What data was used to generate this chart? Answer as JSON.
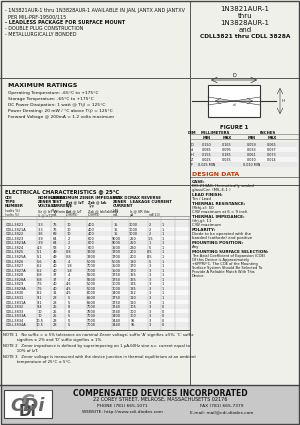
{
  "title_right_line1": "1N3821AUR-1",
  "title_right_line2": "thru",
  "title_right_line3": "1N3828AUR-1",
  "title_right_line4": "and",
  "title_right_line5": "CDLL3821 thru CDLL 3828A",
  "bullet1": "- 1N3821AUR-1 thru 1N3828AUR-1 AVAILABLE IN JAN, JANTX AND JANTXV",
  "bullet1b": "  PER MIL-PRF-19500/115",
  "bullet2": "- LEADLESS PACKAGE FOR SURFACE MOUNT",
  "bullet3": "- DOUBLE PLUG CONSTRUCTION",
  "bullet4": "- METALLURGICALLY BONDED",
  "max_ratings_title": "MAXIMUM RATINGS",
  "max_ratings": [
    "Operating Temperature: -65°C to +175°C",
    "Storage Temperature: -65°C to +175°C",
    "DC Power Dissipation: 1 watt @ T(j) = 125°C",
    "Power Derating: 20 mW / °C above T(j) = 125°C",
    "Forward Voltage @ 200mA = 1.2 volts maximum"
  ],
  "elec_char_title": "ELECTRICAL CHARACTERISTICS @ 25°C",
  "table_rows": [
    [
      "CDLL3821",
      "3.3",
      "76",
      "10",
      "400",
      "15",
      "1000",
      "2",
      "1"
    ],
    [
      "CDLL3821A",
      "3.3",
      "76",
      "10",
      "400",
      "15",
      "1000",
      "2",
      "1"
    ],
    [
      "CDLL3822",
      "3.6",
      "69",
      "10",
      "400",
      "15",
      "1000",
      "2",
      "1"
    ],
    [
      "CDLL3823",
      "3.9",
      "64",
      "2",
      "600",
      "9000",
      "250",
      "1.5",
      "1"
    ],
    [
      "CDLL3823A",
      "3.9",
      "64",
      "2",
      "600",
      "9000",
      "250",
      "1",
      "1"
    ],
    [
      "CDLL3824",
      "4.3",
      "58",
      "2",
      "600",
      "1500",
      "230",
      "5",
      "1"
    ],
    [
      "CDLL3825",
      "5.1",
      "49",
      "0.8",
      "1900",
      "1700",
      "200",
      "0.5",
      "1"
    ],
    [
      "CDLL3825A",
      "5.1",
      "49",
      "0.8",
      "1900",
      "1700",
      "200",
      "0.5",
      "1"
    ],
    [
      "CDLL3826",
      "5.6",
      "45",
      "4",
      "5000",
      "5000",
      "180",
      "5",
      "1"
    ],
    [
      "CDLL3827",
      "6.2",
      "40",
      "1.8",
      "7000",
      "1500",
      "170",
      "3",
      "1"
    ],
    [
      "CDLL3827A",
      "6.2",
      "40",
      "1.8",
      "7000",
      "1500",
      "170",
      "3",
      "1"
    ],
    [
      "CDLL3828",
      "6.8",
      "37",
      "4",
      "5500",
      "1750",
      "165",
      "3",
      "1"
    ],
    [
      "CDLL3828A",
      "6.8",
      "37",
      "4",
      "5500",
      "1750",
      "165",
      "3",
      "1"
    ],
    [
      "CDLL3829",
      "7.5",
      "40",
      "4.5",
      "5000",
      "1000",
      "135",
      "3",
      "1"
    ],
    [
      "CDLL3829A",
      "7.5",
      "40",
      "4.5",
      "5000",
      "1000",
      "135",
      "3",
      "1"
    ],
    [
      "CDLL3830",
      "8.2",
      "31",
      "4.5",
      "6000",
      "1400",
      "122",
      "3",
      "1"
    ],
    [
      "CDLL3831",
      "9.1",
      "28",
      "5",
      "6500",
      "1750",
      "110",
      "3",
      "1"
    ],
    [
      "CDLL3831A",
      "9.1",
      "28",
      "5",
      "6500",
      "1750",
      "110",
      "3",
      "1"
    ],
    [
      "CDLL3832",
      "9.4",
      "26",
      "8",
      "7000",
      "1740",
      "106",
      "3",
      "0"
    ],
    [
      "CDLL3833",
      "10",
      "25",
      "8",
      "7500",
      "1740",
      "100",
      "3",
      "0"
    ],
    [
      "CDLL3833A",
      "10",
      "25",
      "5",
      "7000",
      "1400",
      "100",
      "3",
      "0"
    ],
    [
      "CDLL3834",
      "10.5",
      "23",
      "5",
      "7000",
      "1440",
      "95",
      "3",
      "0"
    ],
    [
      "CDLL3834A",
      "10.5",
      "23",
      "5",
      "7000",
      "1440",
      "95",
      "3",
      "0"
    ]
  ],
  "note1": "NOTE 1   No suffix = ± 5% tolerance on nominal Zener voltage; suffix 'A' signifies ±5%; 'C' suffix",
  "note1b": "           signifies ± 2% and 'D' suffix signifies ± 1%.",
  "note2": "NOTE 2   Zener impedance is defined by superimposing on 1 μA-60Hz sine a.c. current equal to",
  "note2b": "           10% of IzT.",
  "note3": "NOTE 3   Zener voltage is measured with the device junction in thermal equilibrium at an ambient",
  "note3b": "           temperature of 25°C ± 5°C.",
  "figure_label": "FIGURE 1",
  "design_data_title": "DESIGN DATA",
  "dim_rows": [
    [
      "D",
      "0.150",
      "0.165",
      "0.059",
      "0.065"
    ],
    [
      "d",
      "0.085",
      "0.095",
      "0.033",
      "0.037"
    ],
    [
      "H",
      "0.155",
      "0.185",
      "0.061",
      "0.073"
    ],
    [
      "Z",
      "0.025",
      "0.035",
      "0.010",
      "0.014"
    ],
    [
      "F",
      "0.025 MIN",
      "",
      "0.010 MIN",
      ""
    ]
  ],
  "company_name": "COMPENSATED DEVICES INCORPORATED",
  "company_address": "22 COREY STREET, MELROSE, MASSACHUSETTS 02176",
  "company_phone": "PHONE (781) 665-1071",
  "company_fax": "FAX (781) 665-7379",
  "company_website": "WEBSITE: http://www.cdi-diodes.com",
  "company_email": "E-mail: mail@cdi-diodes.com",
  "bg_color": "#f0f0eb",
  "footer_bg": "#c8c8c8"
}
